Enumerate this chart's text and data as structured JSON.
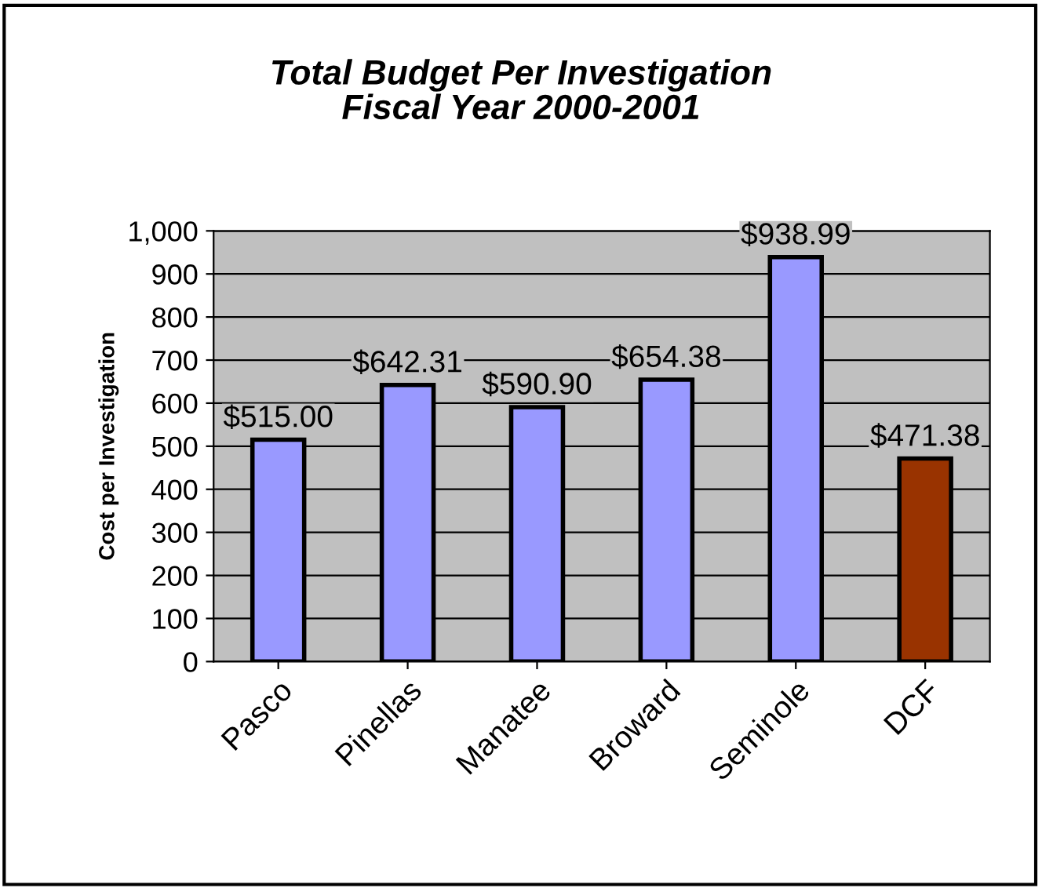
{
  "chart_data": {
    "type": "bar",
    "title": "Total Budget Per Investigation",
    "subtitle": "Fiscal Year 2000-2001",
    "ylabel": "Cost per Investigation",
    "categories": [
      "Pasco",
      "Pinellas",
      "Manatee",
      "Broward",
      "Seminole",
      "DCF"
    ],
    "values": [
      515.0,
      642.31,
      590.9,
      654.38,
      938.99,
      471.38
    ],
    "colors": [
      "#9999ff",
      "#9999ff",
      "#9999ff",
      "#9999ff",
      "#9999ff",
      "#993300"
    ],
    "value_labels": [
      "$515.00",
      "$642.31",
      "$590.90",
      "$654.38",
      "$938.99",
      "$471.38"
    ],
    "ylim": [
      0,
      1000
    ],
    "yticks": [
      0,
      100,
      200,
      300,
      400,
      500,
      600,
      700,
      800,
      900,
      {
        "value": 1000,
        "label": "1,000"
      }
    ],
    "grid": "y"
  }
}
